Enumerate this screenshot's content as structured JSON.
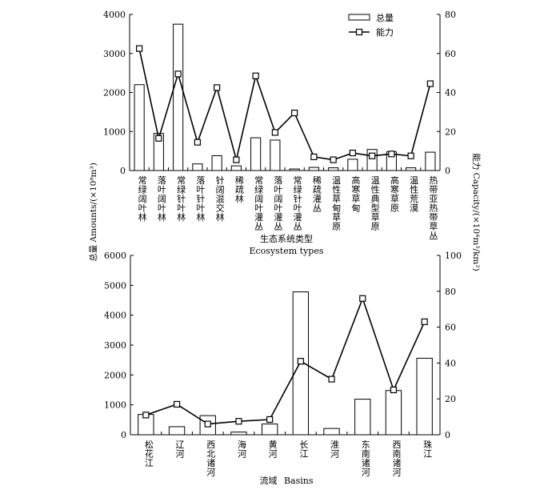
{
  "chart_data": [
    {
      "type": "bar",
      "categories": [
        "常绿阔叶林",
        "落叶阔叶林",
        "常绿针叶林",
        "落叶针叶林",
        "针阔混交林",
        "稀疏林",
        "常绿阔叶灌丛",
        "落叶阔叶灌丛",
        "常绿针叶灌丛",
        "稀疏灌丛",
        "温性草甸草原",
        "高寒草甸",
        "温性典型草原",
        "高寒草原",
        "温性荒漠",
        "热带亚热带草丛"
      ],
      "series": [
        {
          "name": "总量",
          "type": "bar",
          "axis": "left",
          "values": [
            2200,
            950,
            3750,
            170,
            380,
            120,
            840,
            780,
            40,
            80,
            70,
            290,
            540,
            480,
            70,
            470
          ]
        },
        {
          "name": "能力",
          "type": "line",
          "axis": "right",
          "values": [
            62.5,
            16.5,
            49.5,
            14.5,
            42.5,
            5.5,
            48.5,
            19.5,
            29.5,
            7.0,
            5.5,
            9.0,
            7.5,
            8.5,
            7.5,
            44.5
          ]
        }
      ],
      "ylabel_left": "总量 Amounts/(×10⁸m³)",
      "ylabel_right": "能力 Capacity/(×10⁴m³/km²)",
      "xlabel_cn": "生态系统类型",
      "xlabel_en": "Ecosystem types",
      "ylim_left": [
        0,
        4000
      ],
      "yticks_left": [
        0,
        1000,
        2000,
        3000,
        4000
      ],
      "ylim_right": [
        0,
        80
      ],
      "yticks_right": [
        0,
        20,
        40,
        60,
        80
      ],
      "legend": {
        "position": "top-right",
        "entries": [
          "总量",
          "能力"
        ]
      },
      "grid": false
    },
    {
      "type": "bar",
      "categories": [
        "松花江",
        "辽河",
        "西北诸河",
        "海河",
        "黄河",
        "长江",
        "淮河",
        "东南诸河",
        "西南诸河",
        "珠江"
      ],
      "series": [
        {
          "name": "总量",
          "type": "bar",
          "axis": "left",
          "values": [
            680,
            270,
            640,
            90,
            360,
            4780,
            210,
            1190,
            1480,
            2560
          ]
        },
        {
          "name": "能力",
          "type": "line",
          "axis": "right",
          "values": [
            11.0,
            17.0,
            6.0,
            7.5,
            8.5,
            41.0,
            31.0,
            76.0,
            25.0,
            63.0
          ]
        }
      ],
      "xlabel_cn": "流域",
      "xlabel_en": "Basins",
      "ylim_left": [
        0,
        6000
      ],
      "yticks_left": [
        0,
        1000,
        2000,
        3000,
        4000,
        5000,
        6000
      ],
      "ylim_right": [
        0,
        100
      ],
      "yticks_right": [
        0,
        20,
        40,
        60,
        80,
        100
      ],
      "grid": false
    }
  ]
}
